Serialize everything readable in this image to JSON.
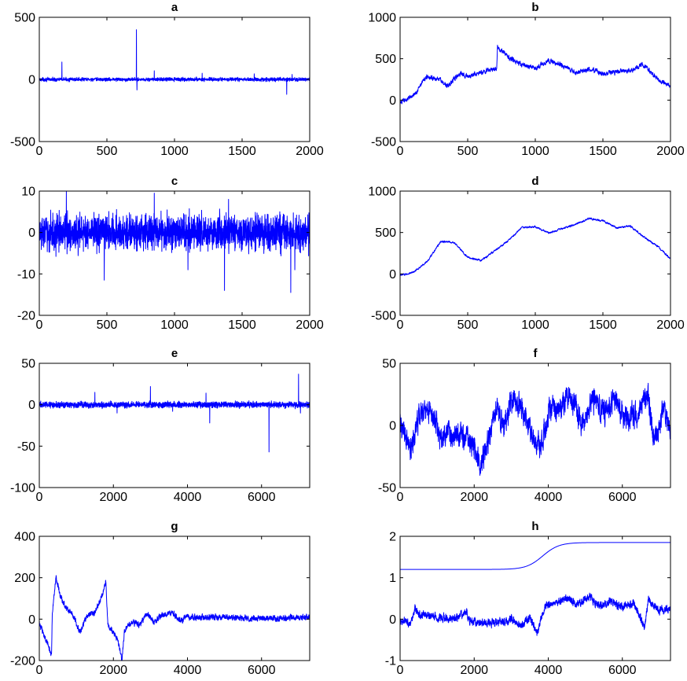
{
  "figure": {
    "line_color": "#0000ff",
    "axis_color": "#000000",
    "background": "#ffffff"
  },
  "chart_data": [
    {
      "id": "a",
      "type": "line",
      "title": "a",
      "xlim": [
        0,
        2000
      ],
      "ylim": [
        -500,
        500
      ],
      "xticks": [
        "0",
        "500",
        "1000",
        "1500",
        "2000"
      ],
      "yticks": [
        "500",
        "0",
        "-500"
      ],
      "series": [
        {
          "kind": "noise",
          "n": 2000,
          "x_start": 0,
          "x_end": 2000,
          "base_level": 0,
          "noise_amplitude": 10,
          "spikes": [
            [
              167,
              140
            ],
            [
              718,
              400
            ],
            [
              722,
              -85
            ],
            [
              850,
              70
            ],
            [
              1205,
              50
            ],
            [
              1590,
              45
            ],
            [
              1830,
              -120
            ],
            [
              1870,
              40
            ]
          ]
        }
      ]
    },
    {
      "id": "b",
      "type": "line",
      "title": "b",
      "xlim": [
        0,
        2000
      ],
      "ylim": [
        -500,
        1000
      ],
      "xticks": [
        "0",
        "500",
        "1000",
        "1500",
        "2000"
      ],
      "yticks": [
        "1000",
        "500",
        "0",
        "-500"
      ],
      "series": [
        {
          "kind": "walk",
          "n": 2000,
          "x_start": 0,
          "x_end": 2000,
          "noise_amplitude": 20,
          "anchors": [
            [
              0,
              -40
            ],
            [
              100,
              60
            ],
            [
              200,
              290
            ],
            [
              300,
              240
            ],
            [
              350,
              170
            ],
            [
              400,
              250
            ],
            [
              450,
              330
            ],
            [
              500,
              290
            ],
            [
              600,
              330
            ],
            [
              715,
              390
            ],
            [
              720,
              650
            ],
            [
              800,
              520
            ],
            [
              900,
              430
            ],
            [
              1000,
              380
            ],
            [
              1100,
              480
            ],
            [
              1200,
              420
            ],
            [
              1300,
              330
            ],
            [
              1400,
              370
            ],
            [
              1500,
              320
            ],
            [
              1600,
              340
            ],
            [
              1700,
              350
            ],
            [
              1800,
              430
            ],
            [
              1900,
              260
            ],
            [
              2000,
              160
            ]
          ]
        }
      ]
    },
    {
      "id": "c",
      "type": "line",
      "title": "c",
      "xlim": [
        0,
        2000
      ],
      "ylim": [
        -20,
        10
      ],
      "xticks": [
        "0",
        "500",
        "1000",
        "1500",
        "2000"
      ],
      "yticks": [
        "10",
        "0",
        "-10",
        "-20"
      ],
      "series": [
        {
          "kind": "noise",
          "n": 2000,
          "x_start": 0,
          "x_end": 2000,
          "base_level": 0,
          "noise_amplitude": 3,
          "spikes": [
            [
              200,
              10
            ],
            [
              480,
              -11.5
            ],
            [
              850,
              9.5
            ],
            [
              1100,
              -9
            ],
            [
              1370,
              -14
            ],
            [
              1400,
              8
            ],
            [
              1860,
              -14.5
            ],
            [
              1890,
              -9
            ]
          ]
        }
      ]
    },
    {
      "id": "d",
      "type": "line",
      "title": "d",
      "xlim": [
        0,
        2000
      ],
      "ylim": [
        -500,
        1000
      ],
      "xticks": [
        "0",
        "500",
        "1000",
        "1500",
        "2000"
      ],
      "yticks": [
        "1000",
        "500",
        "0",
        "-500"
      ],
      "series": [
        {
          "kind": "walk",
          "n": 2000,
          "x_start": 0,
          "x_end": 2000,
          "noise_amplitude": 8,
          "anchors": [
            [
              0,
              -20
            ],
            [
              100,
              20
            ],
            [
              200,
              150
            ],
            [
              300,
              390
            ],
            [
              400,
              380
            ],
            [
              500,
              200
            ],
            [
              600,
              160
            ],
            [
              700,
              280
            ],
            [
              800,
              400
            ],
            [
              900,
              560
            ],
            [
              1000,
              570
            ],
            [
              1100,
              490
            ],
            [
              1200,
              550
            ],
            [
              1300,
              600
            ],
            [
              1400,
              670
            ],
            [
              1500,
              640
            ],
            [
              1600,
              560
            ],
            [
              1700,
              580
            ],
            [
              1800,
              450
            ],
            [
              1900,
              340
            ],
            [
              2000,
              180
            ]
          ]
        }
      ]
    },
    {
      "id": "e",
      "type": "line",
      "title": "e",
      "xlim": [
        0,
        7300
      ],
      "ylim": [
        -100,
        50
      ],
      "xticks": [
        "0",
        "2000",
        "4000",
        "6000"
      ],
      "xtick_values": [
        0,
        2000,
        4000,
        6000
      ],
      "yticks": [
        "50",
        "0",
        "-50",
        "-100"
      ],
      "series": [
        {
          "kind": "noise",
          "n": 2400,
          "x_start": 0,
          "x_end": 7300,
          "base_level": 0,
          "noise_amplitude": 2.5,
          "spikes": [
            [
              1500,
              15
            ],
            [
              2100,
              -10
            ],
            [
              3000,
              22
            ],
            [
              3600,
              -8
            ],
            [
              4500,
              14
            ],
            [
              4600,
              -22
            ],
            [
              6200,
              -57
            ],
            [
              7000,
              37
            ],
            [
              7050,
              -10
            ]
          ]
        }
      ]
    },
    {
      "id": "f",
      "type": "line",
      "title": "f",
      "xlim": [
        0,
        7300
      ],
      "ylim": [
        -50,
        50
      ],
      "xticks": [
        "0",
        "2000",
        "4000",
        "6000"
      ],
      "xtick_values": [
        0,
        2000,
        4000,
        6000
      ],
      "yticks": [
        "50",
        "0",
        "-50"
      ],
      "series": [
        {
          "kind": "walk",
          "n": 2400,
          "x_start": 0,
          "x_end": 7300,
          "noise_amplitude": 7,
          "anchors": [
            [
              0,
              0
            ],
            [
              300,
              -20
            ],
            [
              500,
              5
            ],
            [
              700,
              15
            ],
            [
              900,
              5
            ],
            [
              1100,
              -10
            ],
            [
              1300,
              -5
            ],
            [
              1600,
              -10
            ],
            [
              1900,
              -10
            ],
            [
              2200,
              -30
            ],
            [
              2400,
              -10
            ],
            [
              2600,
              15
            ],
            [
              2800,
              0
            ],
            [
              3000,
              20
            ],
            [
              3300,
              15
            ],
            [
              3600,
              -10
            ],
            [
              3800,
              -20
            ],
            [
              4000,
              10
            ],
            [
              4300,
              15
            ],
            [
              4600,
              25
            ],
            [
              4900,
              0
            ],
            [
              5200,
              20
            ],
            [
              5500,
              10
            ],
            [
              5800,
              20
            ],
            [
              6100,
              5
            ],
            [
              6400,
              10
            ],
            [
              6700,
              25
            ],
            [
              6850,
              -15
            ],
            [
              7100,
              10
            ],
            [
              7300,
              0
            ]
          ]
        }
      ]
    },
    {
      "id": "g",
      "type": "line",
      "title": "g",
      "xlim": [
        0,
        7300
      ],
      "ylim": [
        -200,
        400
      ],
      "xticks": [
        "0",
        "2000",
        "4000",
        "6000"
      ],
      "xtick_values": [
        0,
        2000,
        4000,
        6000
      ],
      "yticks": [
        "400",
        "200",
        "0",
        "-200"
      ],
      "series": [
        {
          "kind": "walk",
          "n": 2400,
          "x_start": 0,
          "x_end": 7300,
          "noise_amplitude": 10,
          "anchors": [
            [
              0,
              -20
            ],
            [
              330,
              -170
            ],
            [
              350,
              20
            ],
            [
              450,
              210
            ],
            [
              550,
              120
            ],
            [
              700,
              60
            ],
            [
              900,
              20
            ],
            [
              1100,
              -60
            ],
            [
              1300,
              20
            ],
            [
              1500,
              30
            ],
            [
              1700,
              120
            ],
            [
              1800,
              180
            ],
            [
              1850,
              -30
            ],
            [
              2000,
              -60
            ],
            [
              2150,
              -120
            ],
            [
              2230,
              -200
            ],
            [
              2300,
              -60
            ],
            [
              2500,
              -10
            ],
            [
              2700,
              -30
            ],
            [
              2900,
              30
            ],
            [
              3100,
              -20
            ],
            [
              3300,
              20
            ],
            [
              3600,
              30
            ],
            [
              3800,
              -10
            ],
            [
              4000,
              10
            ],
            [
              5000,
              10
            ],
            [
              6000,
              0
            ],
            [
              7300,
              10
            ]
          ]
        }
      ]
    },
    {
      "id": "h",
      "type": "line",
      "title": "h",
      "xlim": [
        0,
        7300
      ],
      "ylim": [
        -1,
        2
      ],
      "xticks": [
        "0",
        "2000",
        "4000",
        "6000"
      ],
      "xtick_values": [
        0,
        2000,
        4000,
        6000
      ],
      "yticks": [
        "2",
        "1",
        "0",
        "-1"
      ],
      "series": [
        {
          "kind": "sigmoid",
          "n": 400,
          "x_start": 0,
          "x_end": 7300,
          "low": 1.2,
          "high": 1.85,
          "center": 3850,
          "width": 220
        },
        {
          "kind": "walk",
          "n": 2400,
          "x_start": 0,
          "x_end": 7300,
          "noise_amplitude": 0.07,
          "anchors": [
            [
              0,
              -0.05
            ],
            [
              300,
              -0.1
            ],
            [
              400,
              0.3
            ],
            [
              500,
              0.1
            ],
            [
              1000,
              0.05
            ],
            [
              1500,
              0.0
            ],
            [
              1800,
              0.2
            ],
            [
              1850,
              -0.05
            ],
            [
              2200,
              -0.1
            ],
            [
              2600,
              -0.1
            ],
            [
              3000,
              0.0
            ],
            [
              3300,
              -0.15
            ],
            [
              3500,
              0.05
            ],
            [
              3700,
              -0.35
            ],
            [
              3900,
              0.3
            ],
            [
              4200,
              0.4
            ],
            [
              4500,
              0.5
            ],
            [
              4800,
              0.35
            ],
            [
              5100,
              0.55
            ],
            [
              5400,
              0.3
            ],
            [
              5700,
              0.45
            ],
            [
              6000,
              0.3
            ],
            [
              6300,
              0.4
            ],
            [
              6600,
              -0.2
            ],
            [
              6700,
              0.5
            ],
            [
              6950,
              0.2
            ],
            [
              7300,
              0.25
            ]
          ]
        }
      ]
    }
  ]
}
